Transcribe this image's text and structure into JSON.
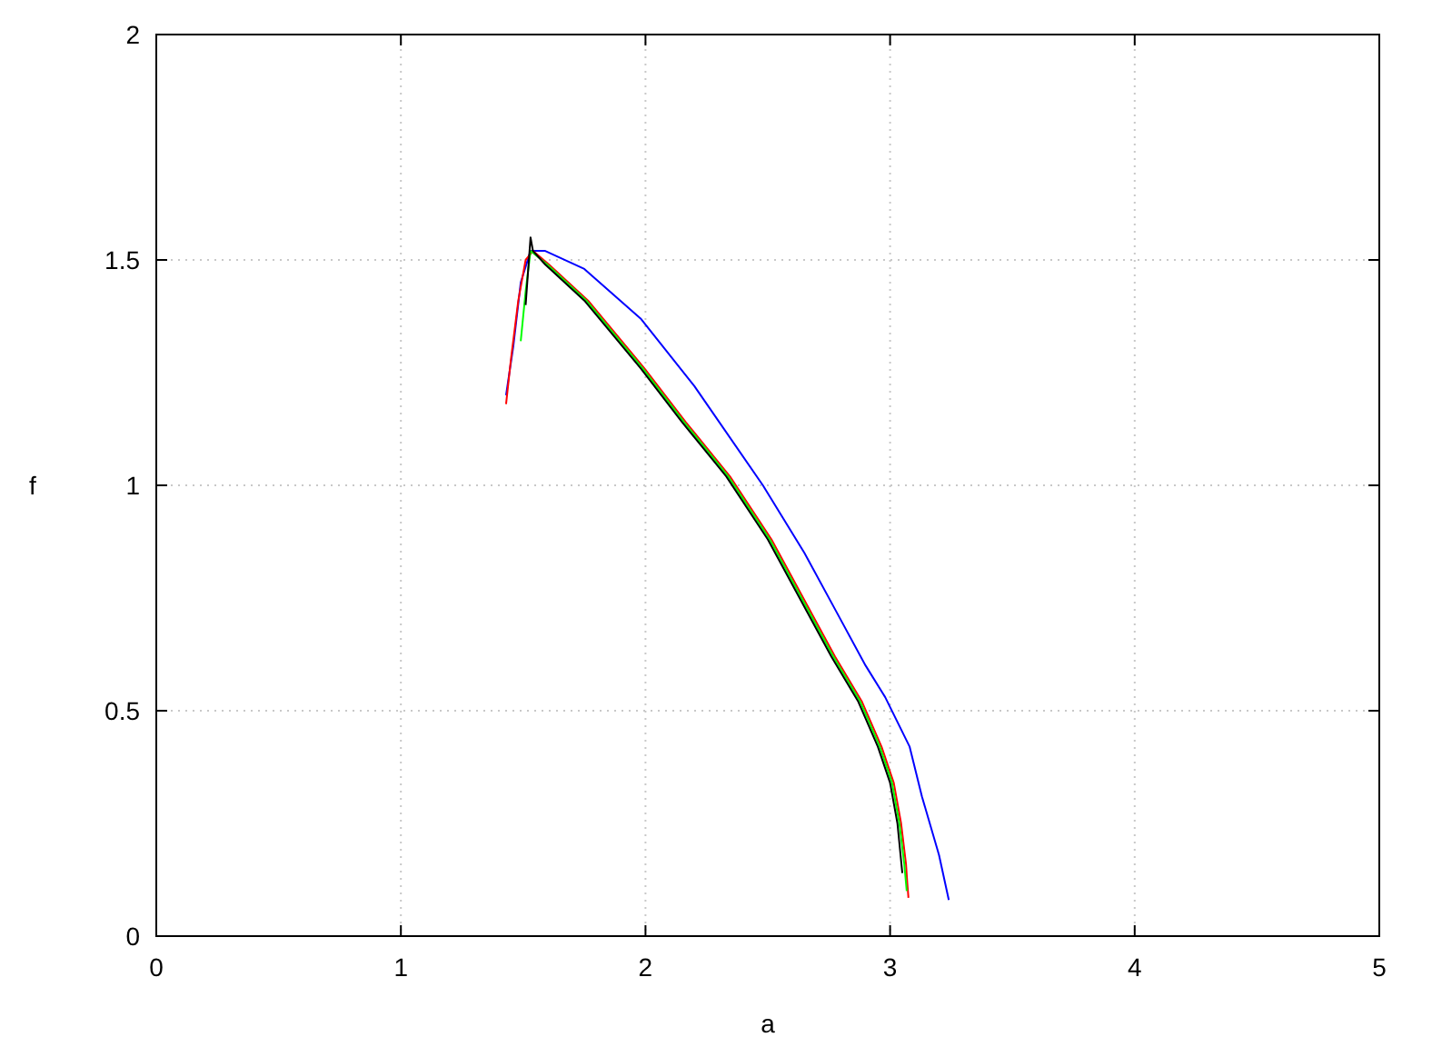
{
  "chart_data": {
    "type": "line",
    "xlabel": "a",
    "ylabel": "f",
    "xlim": [
      0,
      5
    ],
    "xticks": [
      0,
      1,
      2,
      3,
      4,
      5
    ],
    "ylim": [
      0,
      2
    ],
    "yticks": [
      0,
      0.5,
      1,
      1.5,
      2
    ],
    "grid": true,
    "series": [
      {
        "color": "#0000ff",
        "x": [
          1.43,
          1.46,
          1.49,
          1.53,
          1.59,
          1.75,
          1.98,
          2.2,
          2.48,
          2.65,
          2.78,
          2.9,
          2.98,
          3.08,
          3.13,
          3.2,
          3.24
        ],
        "values": [
          1.2,
          1.31,
          1.45,
          1.52,
          1.52,
          1.48,
          1.37,
          1.22,
          1.0,
          0.85,
          0.72,
          0.6,
          0.53,
          0.42,
          0.31,
          0.18,
          0.08
        ]
      },
      {
        "color": "#ff0000",
        "x": [
          1.43,
          1.45,
          1.48,
          1.51,
          1.54,
          1.605,
          1.765,
          1.995,
          2.165,
          2.345,
          2.515,
          2.645,
          2.775,
          2.885,
          2.965,
          3.015,
          3.045,
          3.065,
          3.07,
          3.075
        ],
        "values": [
          1.18,
          1.28,
          1.41,
          1.5,
          1.52,
          1.49,
          1.41,
          1.26,
          1.14,
          1.02,
          0.88,
          0.75,
          0.62,
          0.52,
          0.42,
          0.34,
          0.25,
          0.16,
          0.12,
          0.085
        ]
      },
      {
        "color": "#00ff00",
        "x": [
          1.49,
          1.51,
          1.53,
          1.598,
          1.758,
          1.988,
          2.158,
          2.338,
          2.508,
          2.638,
          2.768,
          2.878,
          2.958,
          3.008,
          3.038,
          3.058,
          3.068
        ],
        "values": [
          1.32,
          1.43,
          1.52,
          1.49,
          1.41,
          1.26,
          1.14,
          1.02,
          0.88,
          0.75,
          0.62,
          0.52,
          0.42,
          0.34,
          0.25,
          0.16,
          0.1
        ]
      },
      {
        "color": "#000000",
        "x": [
          1.51,
          1.53,
          1.54,
          1.59,
          1.75,
          1.98,
          2.15,
          2.33,
          2.5,
          2.63,
          2.76,
          2.87,
          2.95,
          3.0,
          3.03,
          3.05
        ],
        "values": [
          1.4,
          1.55,
          1.52,
          1.49,
          1.41,
          1.26,
          1.14,
          1.02,
          0.88,
          0.75,
          0.62,
          0.52,
          0.42,
          0.34,
          0.25,
          0.14
        ]
      }
    ]
  }
}
